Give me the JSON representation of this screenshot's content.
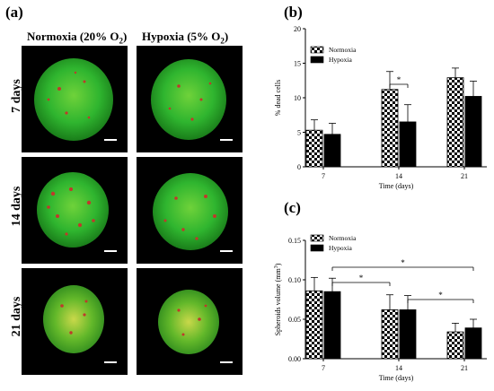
{
  "panel_a": {
    "letter": "(a)",
    "columns": [
      {
        "main": "Normoxia (20% O",
        "sub": "2",
        "close": ")"
      },
      {
        "main": "Hypoxia (5% O",
        "sub": "2",
        "close": ")"
      }
    ],
    "rows": [
      "7 days",
      "14 days",
      "21 days"
    ],
    "colors": {
      "spheroid": "#2fb52f",
      "dead_cells": "#c0392b",
      "background": "#000000",
      "scalebar": "#ffffff"
    }
  },
  "panel_b": {
    "letter": "(b)"
  },
  "panel_c": {
    "letter": "(c)"
  },
  "chart_data": [
    {
      "type": "bar",
      "categories": [
        "7",
        "14",
        "21"
      ],
      "series": [
        {
          "name": "Normoxia",
          "values": [
            5.3,
            11.2,
            12.9
          ],
          "errors": [
            1.5,
            2.6,
            1.4
          ],
          "pattern": "checkered"
        },
        {
          "name": "Hypoxia",
          "values": [
            4.7,
            6.5,
            10.2
          ],
          "errors": [
            1.6,
            2.5,
            2.2
          ],
          "pattern": "solid"
        }
      ],
      "xlabel": "Time (days)",
      "ylabel": "% dead cells",
      "ylim": [
        0,
        20
      ],
      "yticks": [
        "0",
        "5",
        "10",
        "15",
        "20"
      ],
      "legend": "top-left",
      "annotations": [
        {
          "text": "*",
          "between": [
            "Normoxia 14",
            "Hypoxia 14"
          ]
        }
      ]
    },
    {
      "type": "bar",
      "categories": [
        "7",
        "14",
        "21"
      ],
      "series": [
        {
          "name": "Normoxia",
          "values": [
            0.086,
            0.062,
            0.034
          ],
          "errors": [
            0.017,
            0.019,
            0.011
          ],
          "pattern": "checkered"
        },
        {
          "name": "Hypoxia",
          "values": [
            0.085,
            0.062,
            0.039
          ],
          "errors": [
            0.017,
            0.018,
            0.011
          ],
          "pattern": "solid"
        }
      ],
      "xlabel": "Time (days)",
      "ylabel": "Spheroids volume (mm",
      "ylabel_sup": "3",
      "ylabel_close": ")",
      "ylim": [
        0,
        0.15
      ],
      "yticks": [
        "0.00",
        "0.05",
        "0.10",
        "0.15"
      ],
      "legend": "top-left",
      "annotations": [
        {
          "text": "*",
          "between": [
            "Hypoxia 7",
            "Hypoxia 21"
          ]
        },
        {
          "text": "*",
          "between": [
            "Hypoxia 7",
            "Normoxia 14"
          ]
        },
        {
          "text": "*",
          "between": [
            "Hypoxia 14",
            "Hypoxia 21"
          ]
        }
      ]
    }
  ]
}
